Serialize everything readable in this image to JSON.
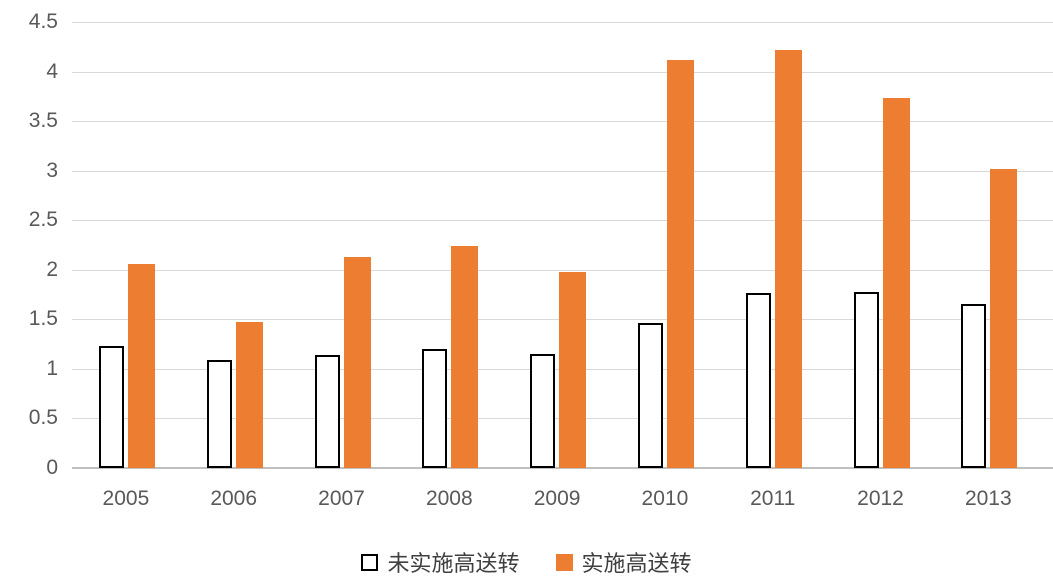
{
  "chart_data": {
    "type": "bar",
    "title": "",
    "xlabel": "",
    "ylabel": "",
    "categories": [
      "2005",
      "2006",
      "2007",
      "2008",
      "2009",
      "2010",
      "2011",
      "2012",
      "2013"
    ],
    "series": [
      {
        "name": "未实施高送转",
        "fill": "#FFFFFF",
        "border": "#000000",
        "values": [
          1.23,
          1.09,
          1.14,
          1.2,
          1.15,
          1.46,
          1.77,
          1.78,
          1.65
        ]
      },
      {
        "name": "实施高送转",
        "fill": "#ED7D31",
        "border": "#ED7D31",
        "values": [
          2.06,
          1.47,
          2.13,
          2.24,
          1.98,
          4.12,
          4.22,
          3.73,
          3.02
        ]
      }
    ],
    "ylim": [
      0,
      4.5
    ],
    "yticks": [
      0,
      0.5,
      1,
      1.5,
      2,
      2.5,
      3,
      3.5,
      4,
      4.5
    ],
    "ytick_labels": [
      "0",
      "0.5",
      "1",
      "1.5",
      "2",
      "2.5",
      "3",
      "3.5",
      "4",
      "4.5"
    ],
    "grid": true,
    "legend_position": "bottom"
  },
  "colors": {
    "accent_orange": "#ED7D31",
    "gridline": "#D9D9D9",
    "axis_line": "#BFBFBF",
    "tick_text": "#595959",
    "legend_text": "#3F3F3F",
    "background": "#FFFFFF"
  }
}
